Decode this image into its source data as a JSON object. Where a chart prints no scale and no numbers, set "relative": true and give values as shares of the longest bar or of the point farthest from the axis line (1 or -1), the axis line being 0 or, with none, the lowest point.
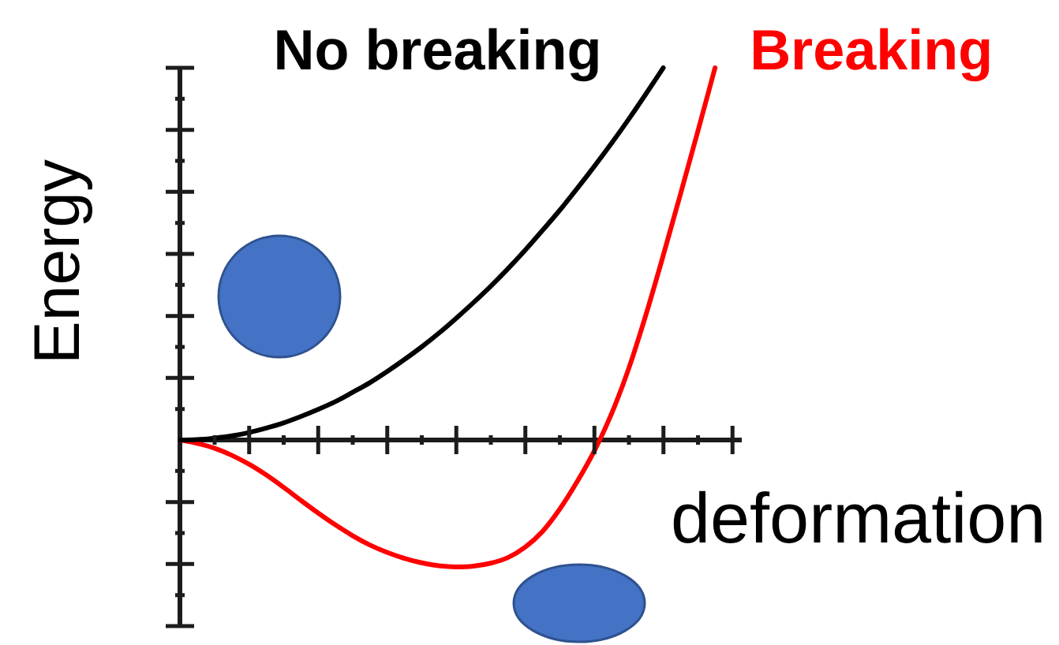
{
  "chart_data": {
    "type": "line",
    "relative": true,
    "xlabel": "deformation",
    "ylabel": "Energy",
    "categories": [
      null,
      null,
      null,
      null,
      null,
      null,
      null,
      null,
      null,
      null,
      null,
      null,
      null,
      null,
      null,
      null,
      null,
      null,
      null,
      null,
      null,
      null,
      null,
      null,
      null,
      null,
      null,
      null,
      null,
      null,
      null,
      null,
      null
    ],
    "series": [
      {
        "name": "No breaking",
        "color": "#000000",
        "values": [
          0,
          0.001,
          0.005,
          0.011,
          0.02,
          0.032,
          0.046,
          0.063,
          0.082,
          0.103,
          0.128,
          0.154,
          0.184,
          0.216,
          0.25,
          0.287,
          0.327,
          0.369,
          0.413,
          0.46,
          0.51,
          0.563,
          0.617,
          0.675,
          0.735,
          0.797,
          0.862,
          0.93,
          1,
          null,
          null,
          null,
          null
        ]
      },
      {
        "name": "Breaking",
        "color": "#ff0000",
        "values": [
          0,
          -0.009,
          -0.022,
          -0.041,
          -0.065,
          -0.094,
          -0.127,
          -0.162,
          -0.196,
          -0.228,
          -0.257,
          -0.282,
          -0.302,
          -0.318,
          -0.33,
          -0.338,
          -0.341,
          -0.339,
          -0.331,
          -0.316,
          -0.288,
          -0.246,
          -0.186,
          -0.113,
          -0.03,
          0.07,
          0.192,
          0.337,
          0.496,
          0.661,
          0.829,
          1,
          null
        ]
      }
    ]
  }
}
